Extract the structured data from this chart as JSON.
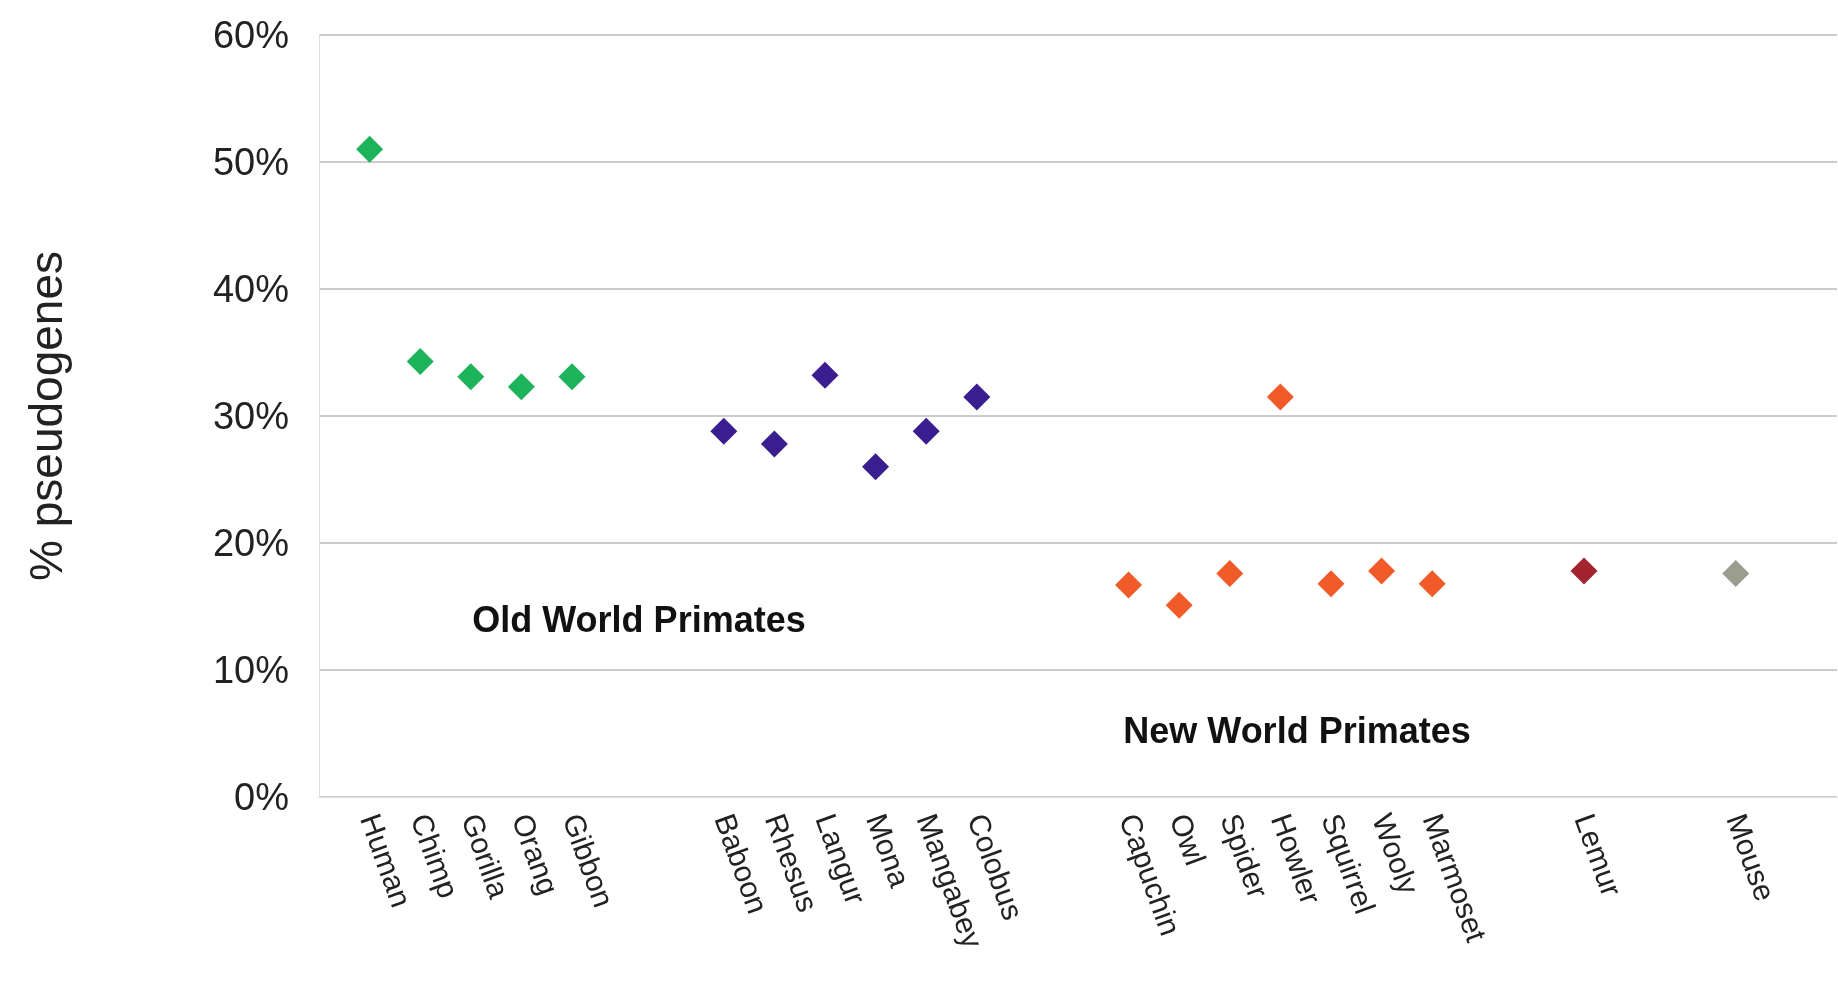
{
  "chart_data": {
    "type": "scatter",
    "ylabel": "% pseudogenes",
    "categories": [
      null,
      "Human",
      "Chimp",
      "Gorilla",
      "Orang",
      "Gibbon",
      null,
      null,
      "Baboon",
      "Rhesus",
      "Langur",
      "Mona",
      "Mangabey",
      "Colobus",
      null,
      null,
      "Capuchin",
      "Owl",
      "Spider",
      "Howler",
      "Squirrel",
      "Wooly",
      "Marmoset",
      null,
      null,
      "Lemur",
      null,
      null,
      "Mouse",
      null,
      null
    ],
    "series": [
      {
        "color": "#1db35b",
        "values": [
          null,
          51,
          34.3,
          33.1,
          32.3,
          33.1,
          null,
          null,
          null,
          null,
          null,
          null,
          null,
          null,
          null,
          null,
          null,
          null,
          null,
          null,
          null,
          null,
          null,
          null,
          null,
          null,
          null,
          null,
          null,
          null,
          null
        ]
      },
      {
        "color": "#3a1d8e",
        "values": [
          null,
          null,
          null,
          null,
          null,
          null,
          null,
          null,
          28.8,
          27.8,
          33.2,
          26,
          28.8,
          31.5,
          null,
          null,
          null,
          null,
          null,
          null,
          null,
          null,
          null,
          null,
          null,
          null,
          null,
          null,
          null,
          null,
          null
        ]
      },
      {
        "color": "#f15a29",
        "values": [
          null,
          null,
          null,
          null,
          null,
          null,
          null,
          null,
          null,
          null,
          null,
          null,
          null,
          null,
          null,
          null,
          16.7,
          15.1,
          17.6,
          31.5,
          16.8,
          17.8,
          16.8,
          null,
          null,
          null,
          null,
          null,
          null,
          null,
          null
        ]
      },
      {
        "color": "#a3242e",
        "values": [
          null,
          null,
          null,
          null,
          null,
          null,
          null,
          null,
          null,
          null,
          null,
          null,
          null,
          null,
          null,
          null,
          null,
          null,
          null,
          null,
          null,
          null,
          null,
          null,
          null,
          17.8,
          null,
          null,
          null,
          null,
          null
        ]
      },
      {
        "color": "#9b9e8e",
        "values": [
          null,
          null,
          null,
          null,
          null,
          null,
          null,
          null,
          null,
          null,
          null,
          null,
          null,
          null,
          null,
          null,
          null,
          null,
          null,
          null,
          null,
          null,
          null,
          null,
          null,
          null,
          null,
          null,
          17.6,
          null,
          null
        ]
      }
    ],
    "ylim": [
      0,
      60
    ],
    "yticks": [
      {
        "value": 0,
        "label": "0%"
      },
      {
        "value": 10,
        "label": "10%"
      },
      {
        "value": 20,
        "label": "20%"
      },
      {
        "value": 30,
        "label": "30%"
      },
      {
        "value": 40,
        "label": "40%"
      },
      {
        "value": 50,
        "label": "50%"
      },
      {
        "value": 60,
        "label": "60%"
      }
    ],
    "grid": "y",
    "marker": "diamond",
    "annotations": [
      "Old World Primates",
      "New World Primates"
    ]
  }
}
